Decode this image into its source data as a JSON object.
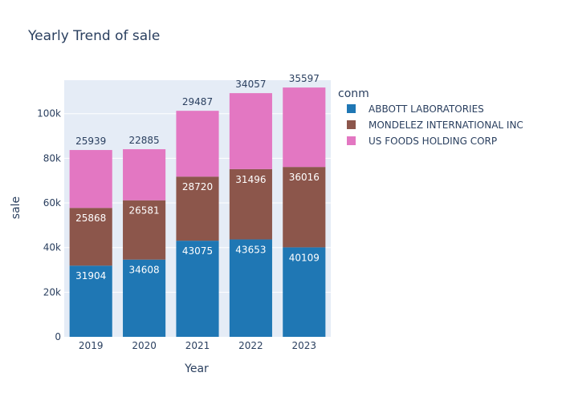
{
  "chart_data": {
    "type": "bar",
    "stacked": true,
    "title": "Yearly Trend of sale",
    "xlabel": "Year",
    "ylabel": "sale",
    "categories": [
      "2019",
      "2020",
      "2021",
      "2022",
      "2023"
    ],
    "ylim": [
      0,
      115000
    ],
    "yticks": [
      0,
      20000,
      40000,
      60000,
      80000,
      100000
    ],
    "ytick_labels": [
      "0",
      "20k",
      "40k",
      "60k",
      "80k",
      "100k"
    ],
    "grid": true,
    "legend_title": "conm",
    "legend_position": "top-right",
    "series": [
      {
        "name": "ABBOTT LABORATORIES",
        "color": "#1f77b4",
        "values": [
          31904,
          34608,
          43075,
          43653,
          40109
        ]
      },
      {
        "name": "MONDELEZ INTERNATIONAL INC",
        "color": "#8c564b",
        "values": [
          25868,
          26581,
          28720,
          31496,
          36016
        ]
      },
      {
        "name": "US FOODS HOLDING CORP",
        "color": "#e377c2",
        "values": [
          25939,
          22885,
          29487,
          34057,
          35597
        ]
      }
    ]
  }
}
